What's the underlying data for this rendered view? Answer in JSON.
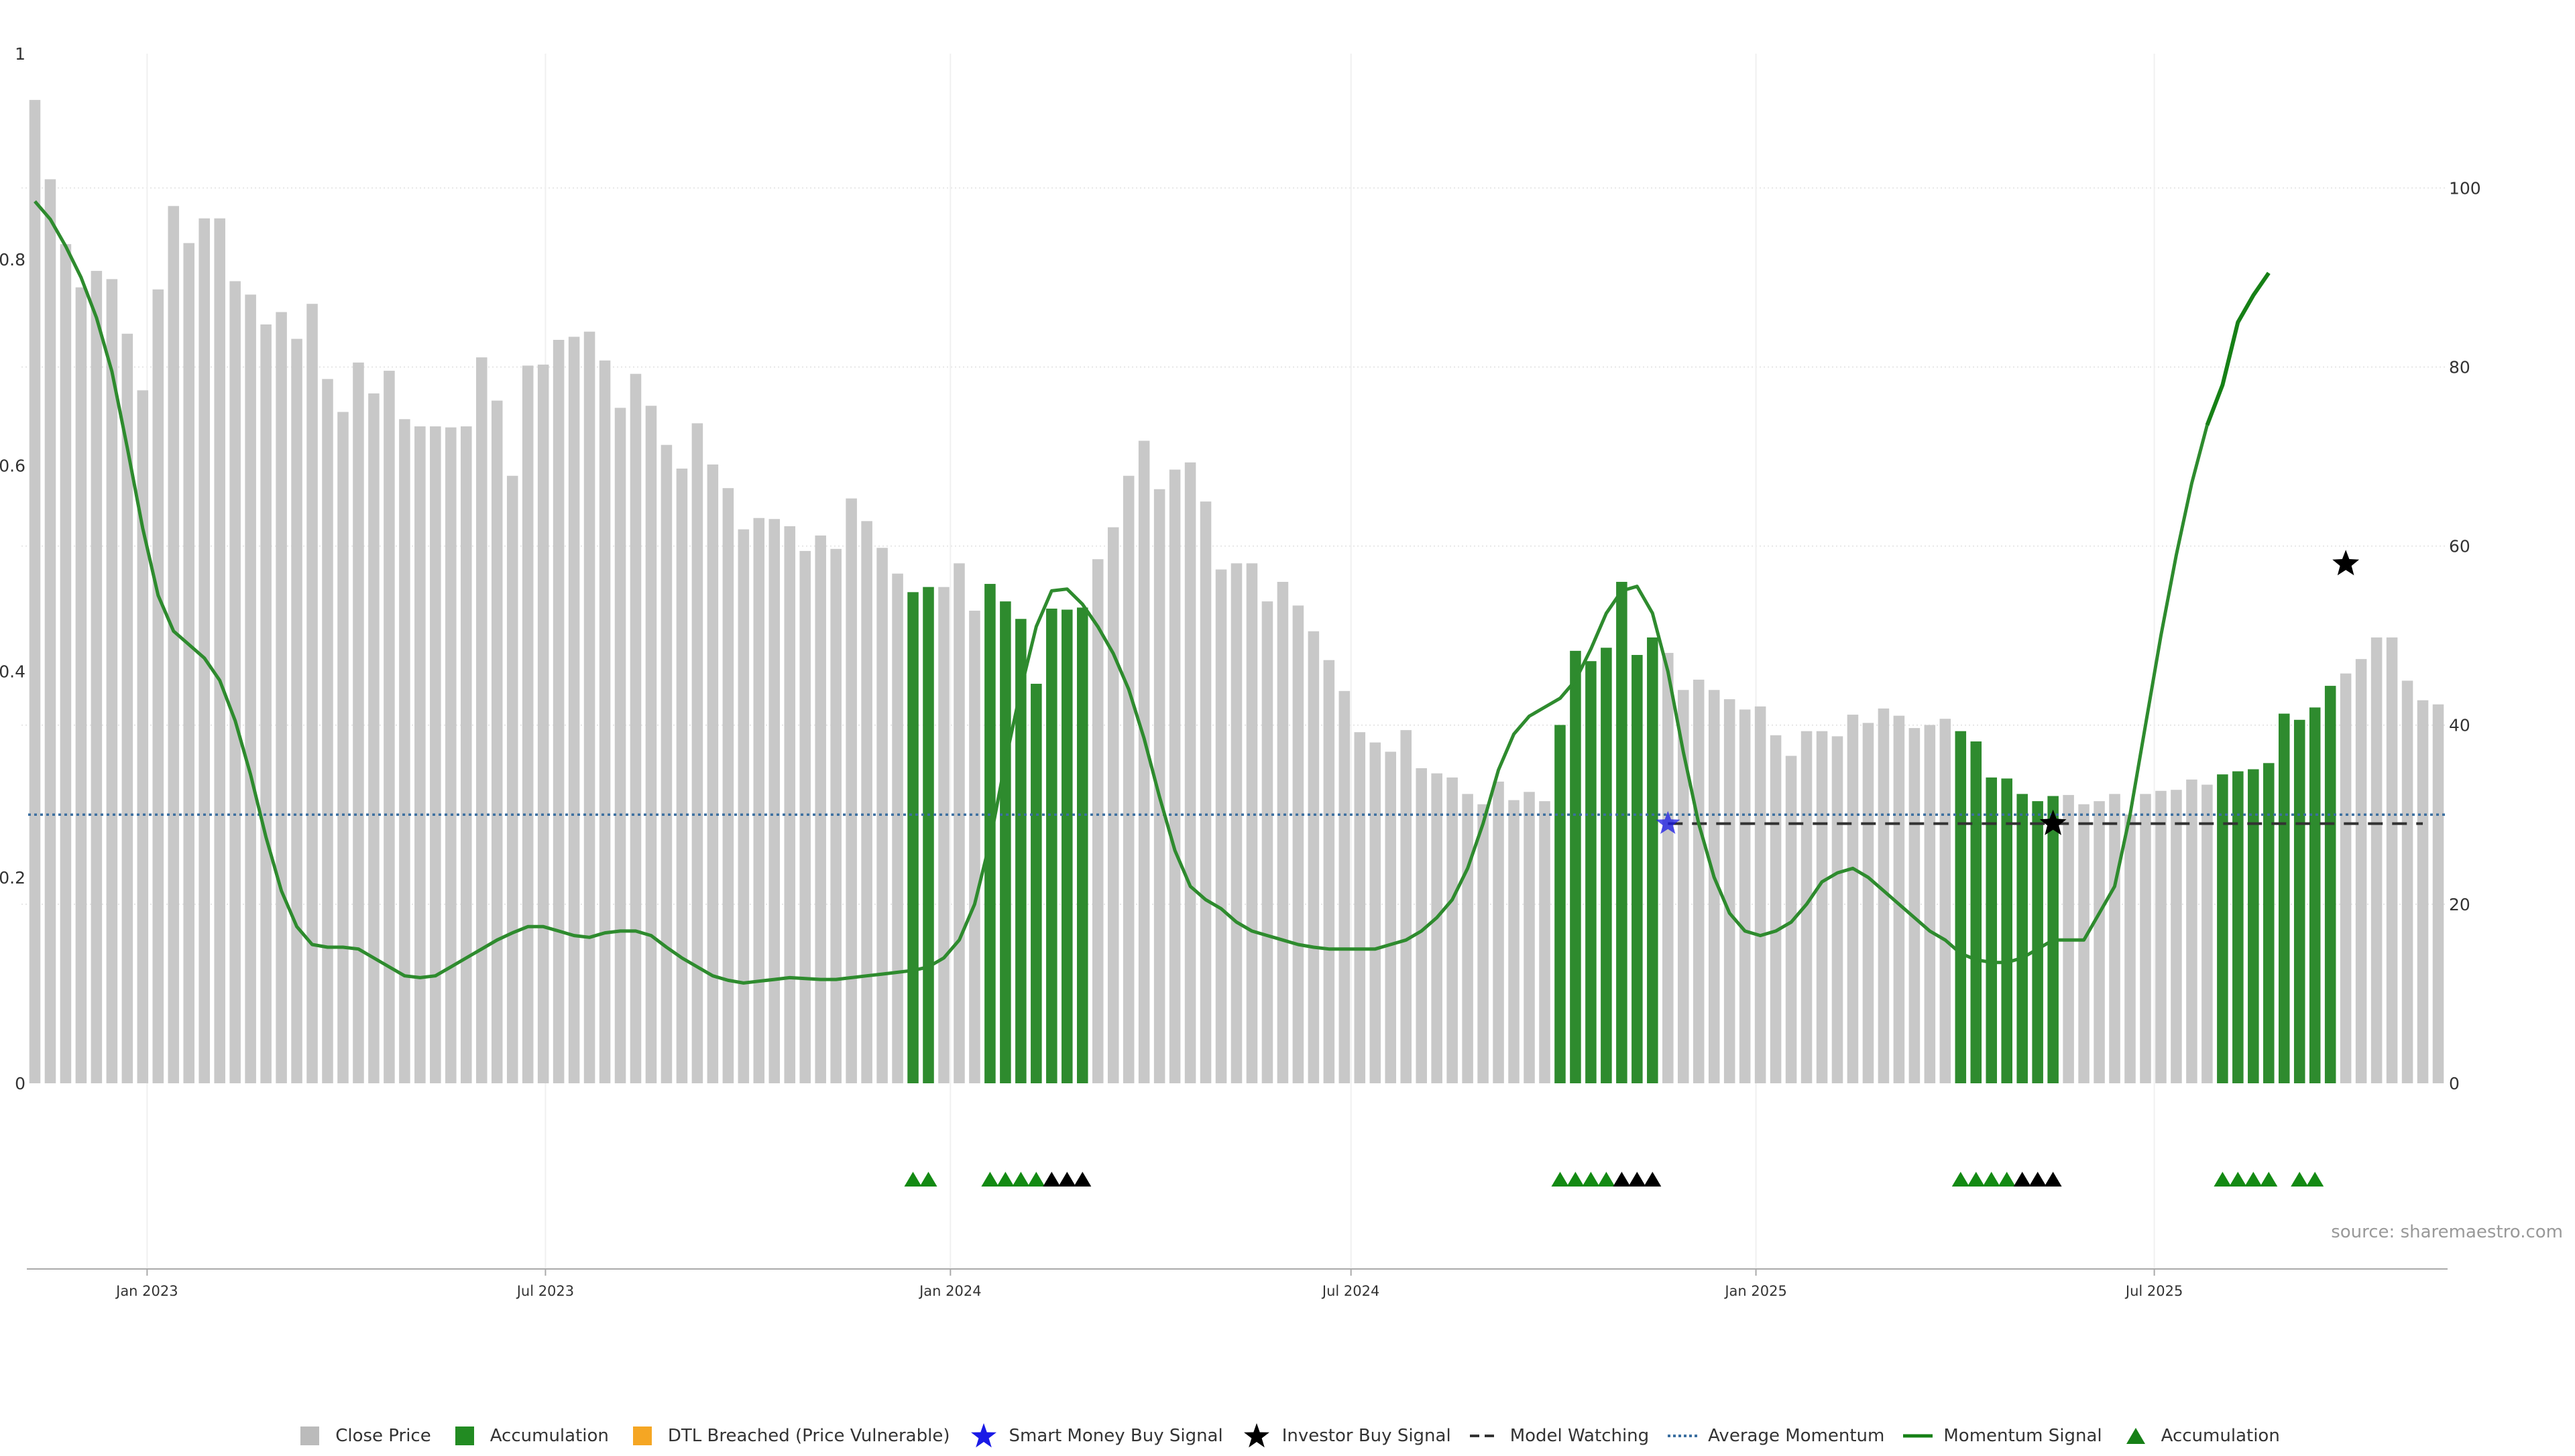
{
  "source_text": "source: sharemaestro.com",
  "colors": {
    "close_price": "#c8c8c8",
    "accumulation": "#2e8b2e",
    "dtl_breached": "#f5a623",
    "momentum_line": "#2e8b2e",
    "momentum_line_late": "#168016",
    "average_momentum": "#3b6fa0",
    "model_watching": "#333333",
    "smart_money": "#1a1ae6",
    "investor": "#000000",
    "grid": "#e6e6e6"
  },
  "legend": [
    {
      "label": "Close Price",
      "symbol": "square",
      "color": "#bbbbbb"
    },
    {
      "label": "Accumulation",
      "symbol": "square",
      "color": "#228b22"
    },
    {
      "label": "DTL Breached (Price Vulnerable)",
      "symbol": "square",
      "color": "#f5a623"
    },
    {
      "label": "Smart Money Buy Signal",
      "symbol": "star",
      "color": "#1a1ae6"
    },
    {
      "label": "Investor Buy Signal",
      "symbol": "star",
      "color": "#000000"
    },
    {
      "label": "Model Watching",
      "symbol": "dash",
      "color": "#333333"
    },
    {
      "label": "Average Momentum",
      "symbol": "dot",
      "color": "#3b6fa0"
    },
    {
      "label": "Momentum Signal",
      "symbol": "line",
      "color": "#168016"
    },
    {
      "label": "Accumulation",
      "symbol": "triangle",
      "color": "#168016"
    }
  ],
  "chart_data": {
    "type": "bar",
    "y_left": {
      "range": [
        0,
        1
      ],
      "ticks": [
        "0",
        "0.2",
        "0.4",
        "0.6",
        "0.8",
        "1"
      ]
    },
    "y_right": {
      "range": [
        0,
        115
      ],
      "ticks": [
        "0",
        "20",
        "40",
        "60",
        "80",
        "100"
      ]
    },
    "x_axis": {
      "start_date": "2022-11-11",
      "period_days": 7,
      "ticks": [
        {
          "label": "Jan 2023",
          "date": "2023-01-01"
        },
        {
          "label": "Jul 2023",
          "date": "2023-07-01"
        },
        {
          "label": "Jan 2024",
          "date": "2024-01-01"
        },
        {
          "label": "Jul 2024",
          "date": "2024-07-01"
        },
        {
          "label": "Jan 2025",
          "date": "2025-01-01"
        },
        {
          "label": "Jul 2025",
          "date": "2025-07-01"
        }
      ]
    },
    "grid": true,
    "legend_position": "bottom",
    "series": [
      {
        "name": "Close Price",
        "values": [
          0.955,
          0.878,
          0.815,
          0.773,
          0.789,
          0.781,
          0.728,
          0.673,
          0.771,
          0.852,
          0.816,
          0.84,
          0.84,
          0.779,
          0.766,
          0.737,
          0.749,
          0.723,
          0.757,
          0.684,
          0.652,
          0.7,
          0.67,
          0.692,
          0.645,
          0.638,
          0.638,
          0.637,
          0.638,
          0.705,
          0.663,
          0.59,
          0.697,
          0.698,
          0.722,
          0.725,
          0.73,
          0.702,
          0.656,
          0.689,
          0.658,
          0.62,
          0.597,
          0.641,
          0.601,
          0.578,
          0.538,
          0.549,
          0.548,
          0.541,
          0.517,
          0.532,
          0.519,
          0.568,
          0.546,
          0.52,
          0.495,
          0.477,
          0.482,
          0.482,
          0.505,
          0.459,
          0.485,
          0.468,
          0.451,
          0.388,
          0.461,
          0.46,
          0.462,
          0.509,
          0.54,
          0.59,
          0.624,
          0.577,
          0.596,
          0.603,
          0.565,
          0.499,
          0.505,
          0.505,
          0.468,
          0.487,
          0.464,
          0.439,
          0.411,
          0.381,
          0.341,
          0.331,
          0.322,
          0.343,
          0.306,
          0.301,
          0.297,
          0.281,
          0.271,
          0.293,
          0.275,
          0.283,
          0.274,
          0.348,
          0.42,
          0.41,
          0.423,
          0.487,
          0.416,
          0.433,
          0.418,
          0.382,
          0.392,
          0.382,
          0.373,
          0.363,
          0.366,
          0.338,
          0.318,
          0.342,
          0.342,
          0.337,
          0.358,
          0.35,
          0.364,
          0.357,
          0.345,
          0.348,
          0.354,
          0.342,
          0.332,
          0.297,
          0.296,
          0.281,
          0.274,
          0.279,
          0.28,
          0.271,
          0.274,
          0.281,
          0.261,
          0.281,
          0.284,
          0.285,
          0.295,
          0.29,
          0.3,
          0.303,
          0.305,
          0.311,
          0.359,
          0.353,
          0.365,
          0.386,
          0.398,
          0.412,
          0.433,
          0.433,
          0.391,
          0.372,
          0.368
        ]
      },
      {
        "name": "Momentum Signal",
        "values": [
          98.5,
          96.5,
          93.5,
          90,
          85.5,
          79.5,
          71,
          62,
          54.5,
          50.5,
          49,
          47.5,
          45,
          40.5,
          34.5,
          27.5,
          21.5,
          17.5,
          15.5,
          15.2,
          15.2,
          15,
          14,
          13,
          12,
          11.8,
          12,
          13,
          14,
          15,
          16,
          16.8,
          17.5,
          17.5,
          17,
          16.5,
          16.3,
          16.8,
          17,
          17,
          16.5,
          15.2,
          14,
          13,
          12,
          11.5,
          11.2,
          11.4,
          11.6,
          11.8,
          11.7,
          11.6,
          11.6,
          11.8,
          12,
          12.2,
          12.4,
          12.6,
          13,
          14,
          16,
          20,
          27,
          36,
          44,
          51,
          55,
          55.2,
          53.5,
          51,
          48,
          44,
          38.5,
          32,
          26,
          22,
          20.5,
          19.5,
          18,
          17,
          16.5,
          16,
          15.5,
          15.2,
          15,
          15,
          15,
          15,
          15.5,
          16,
          17,
          18.5,
          20.5,
          24,
          29,
          35,
          39,
          41,
          42,
          43,
          45,
          48.5,
          52.5,
          55,
          55.5,
          52.5,
          46,
          37,
          29,
          23,
          19,
          17,
          16.5,
          17,
          18,
          20,
          22.5,
          23.5,
          24,
          23,
          21.5,
          20,
          18.5,
          17,
          16,
          14.5,
          13.8,
          13.5,
          13.5,
          14,
          15,
          16,
          16,
          16,
          19,
          22,
          30,
          40,
          50,
          59,
          67,
          73.5,
          78,
          85,
          88,
          90.5
        ]
      },
      {
        "name": "Average Momentum",
        "values": [
          30
        ]
      },
      {
        "name": "Model Watching",
        "values": [
          29
        ]
      }
    ],
    "accumulation_indices": [
      57,
      58,
      62,
      63,
      64,
      65,
      66,
      67,
      68,
      99,
      100,
      101,
      102,
      103,
      104,
      105,
      125,
      126,
      127,
      128,
      129,
      130,
      131,
      142,
      143,
      144,
      145,
      146,
      147,
      148,
      149
    ],
    "dtl_breached_indices": [],
    "model_watching_range": [
      106,
      155
    ],
    "markers": {
      "smart_money": [
        {
          "index": 106,
          "value": 29
        }
      ],
      "investor": [
        {
          "index": 131,
          "value": 29
        },
        {
          "index": 150,
          "value": 58
        }
      ]
    },
    "signal_triangles": [
      {
        "index": 57,
        "color": "green"
      },
      {
        "index": 58,
        "color": "green"
      },
      {
        "index": 62,
        "color": "green"
      },
      {
        "index": 63,
        "color": "green"
      },
      {
        "index": 64,
        "color": "green"
      },
      {
        "index": 65,
        "color": "green"
      },
      {
        "index": 66,
        "color": "black"
      },
      {
        "index": 67,
        "color": "black"
      },
      {
        "index": 68,
        "color": "black"
      },
      {
        "index": 99,
        "color": "green"
      },
      {
        "index": 100,
        "color": "green"
      },
      {
        "index": 101,
        "color": "green"
      },
      {
        "index": 102,
        "color": "green"
      },
      {
        "index": 103,
        "color": "black"
      },
      {
        "index": 104,
        "color": "black"
      },
      {
        "index": 105,
        "color": "black"
      },
      {
        "index": 125,
        "color": "green"
      },
      {
        "index": 126,
        "color": "green"
      },
      {
        "index": 127,
        "color": "green"
      },
      {
        "index": 128,
        "color": "green"
      },
      {
        "index": 129,
        "color": "black"
      },
      {
        "index": 130,
        "color": "black"
      },
      {
        "index": 131,
        "color": "black"
      },
      {
        "index": 142,
        "color": "green"
      },
      {
        "index": 143,
        "color": "green"
      },
      {
        "index": 144,
        "color": "green"
      },
      {
        "index": 145,
        "color": "green"
      },
      {
        "index": 147,
        "color": "green"
      },
      {
        "index": 148,
        "color": "green"
      }
    ]
  }
}
